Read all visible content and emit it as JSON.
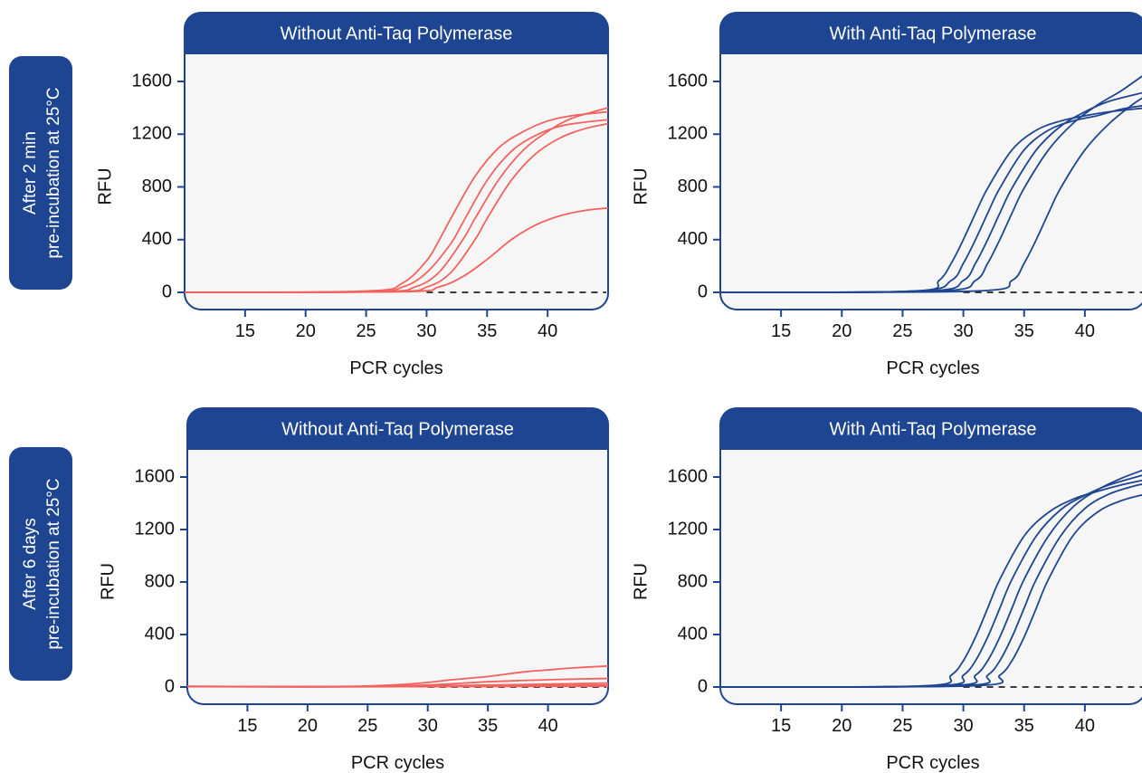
{
  "colors": {
    "navy": "#1d4591",
    "salmon": "#f4625e",
    "plot_bg": "#f6f6f6",
    "axis_text": "#111111",
    "baseline": "#222222"
  },
  "rows": [
    {
      "label_line1": "After 2 min",
      "label_line2": "pre-incubation at 25°C"
    },
    {
      "label_line1": "After 6 days",
      "label_line2": "pre-incubation at 25°C"
    }
  ],
  "chart_data": [
    {
      "type": "line",
      "title": "Without Anti-Taq Polymerase",
      "xlabel": "PCR cycles",
      "ylabel": "RFU",
      "xlim": [
        10,
        45
      ],
      "ylim": [
        0,
        1800
      ],
      "xticks": [
        15,
        20,
        25,
        30,
        35,
        40
      ],
      "yticks": [
        0,
        400,
        800,
        1200,
        1600
      ],
      "line_color": "salmon",
      "baseline": "dashed at 0 from cycle 30",
      "series": [
        {
          "x": [
            10,
            25,
            28,
            30,
            31,
            32,
            34,
            36,
            38,
            40,
            42,
            45
          ],
          "y": [
            0,
            10,
            70,
            240,
            390,
            560,
            880,
            1100,
            1220,
            1300,
            1340,
            1370
          ]
        },
        {
          "x": [
            10,
            25,
            28,
            30,
            32,
            33,
            35,
            37,
            39,
            41,
            43,
            45
          ],
          "y": [
            0,
            5,
            40,
            150,
            370,
            530,
            850,
            1070,
            1190,
            1260,
            1290,
            1310
          ]
        },
        {
          "x": [
            10,
            26,
            29,
            31,
            33,
            34,
            36,
            38,
            40,
            42,
            45
          ],
          "y": [
            0,
            5,
            40,
            150,
            400,
            560,
            860,
            1080,
            1220,
            1320,
            1400
          ]
        },
        {
          "x": [
            10,
            27,
            30,
            32,
            34,
            35,
            37,
            39,
            41,
            43,
            45
          ],
          "y": [
            0,
            5,
            40,
            150,
            400,
            560,
            850,
            1050,
            1170,
            1240,
            1280
          ]
        },
        {
          "x": [
            10,
            28,
            31,
            33,
            35,
            37,
            39,
            41,
            43,
            45
          ],
          "y": [
            0,
            5,
            40,
            120,
            250,
            400,
            510,
            580,
            620,
            640
          ]
        }
      ]
    },
    {
      "type": "line",
      "title": "With Anti-Taq Polymerase",
      "xlabel": "PCR cycles",
      "ylabel": "RFU",
      "xlim": [
        10,
        45
      ],
      "ylim": [
        0,
        1800
      ],
      "xticks": [
        15,
        20,
        25,
        30,
        35,
        40
      ],
      "yticks": [
        0,
        400,
        800,
        1200,
        1600
      ],
      "line_color": "navy",
      "baseline": "dashed at 0 from cycle 30",
      "series": [
        {
          "x": [
            10,
            26,
            28,
            29,
            30,
            31,
            32,
            34,
            36,
            38,
            40,
            42,
            45
          ],
          "y": [
            0,
            10,
            90,
            220,
            400,
            600,
            790,
            1080,
            1230,
            1300,
            1340,
            1370,
            1400
          ]
        },
        {
          "x": [
            10,
            26,
            29,
            30,
            31,
            32,
            33,
            35,
            37,
            39,
            41,
            43,
            45
          ],
          "y": [
            0,
            10,
            90,
            220,
            400,
            600,
            790,
            1080,
            1230,
            1300,
            1340,
            1390,
            1420
          ]
        },
        {
          "x": [
            10,
            27,
            30,
            31,
            32,
            33,
            34,
            36,
            38,
            40,
            42,
            45
          ],
          "y": [
            0,
            10,
            90,
            220,
            400,
            600,
            790,
            1080,
            1260,
            1370,
            1450,
            1520
          ]
        },
        {
          "x": [
            10,
            28,
            31,
            32,
            33,
            34,
            35,
            37,
            39,
            41,
            43,
            45
          ],
          "y": [
            0,
            10,
            90,
            220,
            400,
            600,
            790,
            1080,
            1280,
            1420,
            1530,
            1660
          ]
        },
        {
          "x": [
            10,
            31,
            34,
            35,
            36,
            37,
            38,
            40,
            42,
            44,
            45
          ],
          "y": [
            0,
            10,
            90,
            220,
            400,
            600,
            790,
            1080,
            1280,
            1430,
            1490
          ]
        }
      ]
    },
    {
      "type": "line",
      "title": "Without Anti-Taq Polymerase",
      "xlabel": "PCR cycles",
      "ylabel": "RFU",
      "xlim": [
        10,
        45
      ],
      "ylim": [
        0,
        1800
      ],
      "xticks": [
        15,
        20,
        25,
        30,
        35,
        40
      ],
      "yticks": [
        0,
        400,
        800,
        1200,
        1600
      ],
      "line_color": "salmon",
      "baseline": "dashed at 0 from cycle 30",
      "series": [
        {
          "x": [
            10,
            20,
            25,
            28,
            30,
            32,
            35,
            38,
            40,
            42,
            45
          ],
          "y": [
            5,
            3,
            8,
            20,
            35,
            55,
            80,
            115,
            130,
            145,
            160
          ]
        },
        {
          "x": [
            10,
            20,
            25,
            30,
            33,
            35,
            38,
            40,
            42,
            45
          ],
          "y": [
            5,
            2,
            5,
            15,
            30,
            40,
            50,
            55,
            60,
            65
          ]
        },
        {
          "x": [
            10,
            20,
            25,
            30,
            35,
            40,
            45
          ],
          "y": [
            5,
            2,
            4,
            8,
            15,
            22,
            30
          ]
        },
        {
          "x": [
            10,
            20,
            25,
            30,
            35,
            40,
            45
          ],
          "y": [
            4,
            1,
            3,
            5,
            8,
            12,
            15
          ]
        },
        {
          "x": [
            10,
            20,
            25,
            30,
            35,
            40,
            45
          ],
          "y": [
            3,
            1,
            2,
            3,
            4,
            5,
            6
          ]
        }
      ]
    },
    {
      "type": "line",
      "title": "With Anti-Taq Polymerase",
      "xlabel": "PCR cycles",
      "ylabel": "RFU",
      "xlim": [
        10,
        45
      ],
      "ylim": [
        0,
        1800
      ],
      "xticks": [
        15,
        20,
        25,
        30,
        35,
        40
      ],
      "yticks": [
        0,
        400,
        800,
        1200,
        1600
      ],
      "line_color": "navy",
      "baseline": "dashed at 0 from cycle 30",
      "series": [
        {
          "x": [
            10,
            27,
            29,
            30,
            31,
            32,
            33,
            35,
            37,
            39,
            41,
            43,
            45
          ],
          "y": [
            0,
            10,
            90,
            200,
            380,
            600,
            820,
            1150,
            1330,
            1430,
            1490,
            1540,
            1580
          ]
        },
        {
          "x": [
            10,
            28,
            30,
            31,
            32,
            33,
            34,
            36,
            38,
            40,
            42,
            45
          ],
          "y": [
            0,
            10,
            90,
            200,
            380,
            600,
            820,
            1150,
            1350,
            1460,
            1540,
            1620
          ]
        },
        {
          "x": [
            10,
            29,
            31,
            32,
            33,
            34,
            35,
            37,
            39,
            41,
            43,
            45
          ],
          "y": [
            0,
            10,
            90,
            200,
            380,
            600,
            820,
            1150,
            1370,
            1500,
            1590,
            1660
          ]
        },
        {
          "x": [
            10,
            30,
            32,
            33,
            34,
            35,
            36,
            38,
            40,
            42,
            44,
            45
          ],
          "y": [
            0,
            10,
            90,
            200,
            380,
            600,
            820,
            1150,
            1360,
            1470,
            1530,
            1550
          ]
        },
        {
          "x": [
            10,
            31,
            33,
            34,
            35,
            36,
            37,
            39,
            41,
            43,
            45
          ],
          "y": [
            0,
            10,
            90,
            200,
            380,
            600,
            820,
            1150,
            1330,
            1420,
            1470
          ]
        }
      ]
    }
  ]
}
